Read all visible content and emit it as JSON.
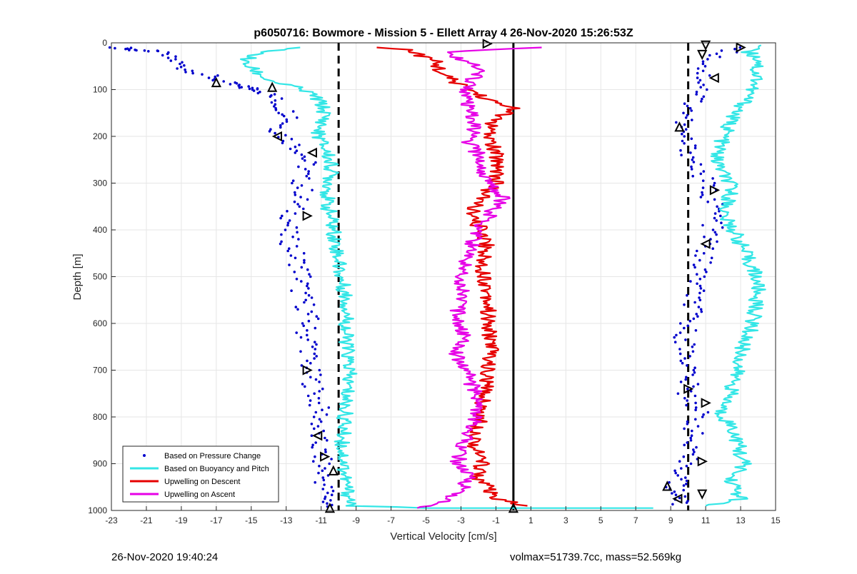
{
  "chart_data": {
    "type": "scatter",
    "title": "p6050716: Bowmore - Mission 5 - Ellett Array 4 26-Nov-2020 15:26:53Z",
    "xlabel": "Vertical Velocity [cm/s]",
    "ylabel": "Depth [m]",
    "xlim": [
      -23,
      15
    ],
    "ylim": [
      0,
      1000
    ],
    "y_reversed": true,
    "grid": true,
    "x_ticks": [
      -23,
      -21,
      -19,
      -17,
      -15,
      -13,
      -11,
      -9,
      -7,
      -5,
      -3,
      -1,
      1,
      3,
      5,
      7,
      9,
      11,
      13,
      15
    ],
    "y_ticks": [
      0,
      100,
      200,
      300,
      400,
      500,
      600,
      700,
      800,
      900,
      1000
    ],
    "reference_lines": [
      {
        "x": -10,
        "style": "dashed",
        "color": "#000000"
      },
      {
        "x": 10,
        "style": "dashed",
        "color": "#000000"
      },
      {
        "x": 0,
        "style": "solid",
        "color": "#000000"
      }
    ],
    "legend": {
      "position": "bottom-left",
      "entries": [
        {
          "label": "Based on Pressure Change",
          "color": "#0000cc",
          "marker": "dot"
        },
        {
          "label": "Based on Buoyancy and Pitch",
          "color": "#33e6e6",
          "marker": "line"
        },
        {
          "label": "Upwelling on Descent",
          "color": "#e60000",
          "marker": "line"
        },
        {
          "label": "Upwelling on Ascent",
          "color": "#e600e6",
          "marker": "line"
        }
      ]
    },
    "series": [
      {
        "name": "Based on Pressure Change (descent)",
        "color": "#0000cc",
        "points": [
          [
            -22.5,
            10
          ],
          [
            -21.8,
            15
          ],
          [
            -20.5,
            18
          ],
          [
            -19.5,
            35
          ],
          [
            -18.8,
            55
          ],
          [
            -17.5,
            70
          ],
          [
            -16.5,
            85
          ],
          [
            -15.5,
            95
          ],
          [
            -14.5,
            100
          ],
          [
            -13.8,
            115
          ],
          [
            -13.2,
            140
          ],
          [
            -12.5,
            160
          ],
          [
            -13.5,
            185
          ],
          [
            -12.8,
            210
          ],
          [
            -12.0,
            235
          ],
          [
            -11.8,
            260
          ],
          [
            -12.2,
            290
          ],
          [
            -12.0,
            320
          ],
          [
            -12.5,
            350
          ],
          [
            -12.8,
            380
          ],
          [
            -13.0,
            410
          ],
          [
            -12.6,
            440
          ],
          [
            -12.3,
            470
          ],
          [
            -12.0,
            500
          ],
          [
            -12.2,
            530
          ],
          [
            -11.9,
            560
          ],
          [
            -11.7,
            590
          ],
          [
            -11.9,
            620
          ],
          [
            -11.5,
            650
          ],
          [
            -11.8,
            680
          ],
          [
            -11.6,
            710
          ],
          [
            -11.4,
            740
          ],
          [
            -11.2,
            770
          ],
          [
            -11.0,
            800
          ],
          [
            -11.3,
            830
          ],
          [
            -11.2,
            860
          ],
          [
            -11.0,
            890
          ],
          [
            -10.9,
            920
          ],
          [
            -10.8,
            950
          ],
          [
            -10.6,
            975
          ],
          [
            -10.5,
            995
          ]
        ]
      },
      {
        "name": "Based on Pressure Change (ascent)",
        "color": "#0000cc",
        "points": [
          [
            13.0,
            10
          ],
          [
            11.5,
            30
          ],
          [
            10.8,
            60
          ],
          [
            11.0,
            90
          ],
          [
            10.5,
            120
          ],
          [
            10.0,
            150
          ],
          [
            9.5,
            180
          ],
          [
            9.8,
            210
          ],
          [
            10.2,
            240
          ],
          [
            10.5,
            270
          ],
          [
            11.0,
            300
          ],
          [
            11.3,
            330
          ],
          [
            11.6,
            360
          ],
          [
            11.4,
            390
          ],
          [
            11.2,
            420
          ],
          [
            10.9,
            450
          ],
          [
            10.7,
            480
          ],
          [
            10.5,
            510
          ],
          [
            10.3,
            540
          ],
          [
            10.2,
            570
          ],
          [
            10.0,
            600
          ],
          [
            9.8,
            630
          ],
          [
            9.9,
            660
          ],
          [
            10.1,
            690
          ],
          [
            10.0,
            720
          ],
          [
            9.9,
            750
          ],
          [
            10.6,
            780
          ],
          [
            10.5,
            810
          ],
          [
            10.2,
            840
          ],
          [
            9.8,
            870
          ],
          [
            10.0,
            900
          ],
          [
            9.6,
            930
          ],
          [
            9.2,
            950
          ],
          [
            9.6,
            970
          ],
          [
            9.4,
            990
          ]
        ]
      },
      {
        "name": "Based on Buoyancy and Pitch (descent)",
        "color": "#33e6e6",
        "points": [
          [
            -12.0,
            10
          ],
          [
            -14.5,
            20
          ],
          [
            -15.5,
            40
          ],
          [
            -14.8,
            60
          ],
          [
            -14.0,
            80
          ],
          [
            -12.5,
            95
          ],
          [
            -11.5,
            110
          ],
          [
            -11.0,
            130
          ],
          [
            -10.8,
            150
          ],
          [
            -10.9,
            170
          ],
          [
            -11.2,
            190
          ],
          [
            -11.0,
            210
          ],
          [
            -10.6,
            240
          ],
          [
            -10.4,
            270
          ],
          [
            -10.5,
            300
          ],
          [
            -10.7,
            340
          ],
          [
            -10.4,
            380
          ],
          [
            -10.2,
            420
          ],
          [
            -10.0,
            460
          ],
          [
            -9.9,
            500
          ],
          [
            -9.6,
            540
          ],
          [
            -9.5,
            580
          ],
          [
            -9.6,
            620
          ],
          [
            -9.5,
            660
          ],
          [
            -9.4,
            700
          ],
          [
            -9.5,
            740
          ],
          [
            -9.6,
            780
          ],
          [
            -9.7,
            820
          ],
          [
            -9.8,
            860
          ],
          [
            -9.7,
            900
          ],
          [
            -9.6,
            940
          ],
          [
            -9.4,
            970
          ],
          [
            -9.2,
            990
          ],
          [
            -5.0,
            995
          ],
          [
            3.0,
            995
          ],
          [
            8.0,
            995
          ]
        ]
      },
      {
        "name": "Based on Buoyancy and Pitch (ascent)",
        "color": "#33e6e6",
        "points": [
          [
            14.5,
            5
          ],
          [
            13.5,
            20
          ],
          [
            14.2,
            40
          ],
          [
            13.8,
            60
          ],
          [
            14.0,
            80
          ],
          [
            13.6,
            100
          ],
          [
            13.2,
            130
          ],
          [
            12.5,
            160
          ],
          [
            12.2,
            190
          ],
          [
            11.8,
            220
          ],
          [
            11.6,
            250
          ],
          [
            12.0,
            280
          ],
          [
            12.5,
            310
          ],
          [
            12.3,
            340
          ],
          [
            12.0,
            370
          ],
          [
            12.6,
            400
          ],
          [
            13.0,
            430
          ],
          [
            13.4,
            460
          ],
          [
            13.8,
            490
          ],
          [
            14.0,
            520
          ],
          [
            13.9,
            550
          ],
          [
            13.8,
            580
          ],
          [
            13.6,
            610
          ],
          [
            13.2,
            640
          ],
          [
            13.0,
            670
          ],
          [
            12.8,
            700
          ],
          [
            12.6,
            730
          ],
          [
            12.3,
            760
          ],
          [
            11.8,
            790
          ],
          [
            12.5,
            820
          ],
          [
            12.8,
            850
          ],
          [
            13.0,
            880
          ],
          [
            13.2,
            905
          ],
          [
            12.4,
            930
          ],
          [
            12.8,
            960
          ],
          [
            13.0,
            975
          ],
          [
            11.0,
            990
          ]
        ]
      },
      {
        "name": "Upwelling on Descent",
        "color": "#e60000",
        "points": [
          [
            -7.5,
            10
          ],
          [
            -6.0,
            15
          ],
          [
            -4.5,
            40
          ],
          [
            -4.0,
            70
          ],
          [
            -2.5,
            100
          ],
          [
            -1.0,
            130
          ],
          [
            0.2,
            140
          ],
          [
            -1.0,
            160
          ],
          [
            -1.5,
            190
          ],
          [
            -1.2,
            220
          ],
          [
            -0.8,
            260
          ],
          [
            -1.0,
            300
          ],
          [
            -1.8,
            330
          ],
          [
            -2.5,
            370
          ],
          [
            -1.8,
            400
          ],
          [
            -1.5,
            430
          ],
          [
            -1.8,
            470
          ],
          [
            -1.6,
            510
          ],
          [
            -1.4,
            550
          ],
          [
            -1.5,
            600
          ],
          [
            -1.2,
            650
          ],
          [
            -1.5,
            700
          ],
          [
            -1.6,
            740
          ],
          [
            -1.8,
            780
          ],
          [
            -2.0,
            820
          ],
          [
            -2.2,
            860
          ],
          [
            -1.8,
            900
          ],
          [
            -2.0,
            930
          ],
          [
            -1.5,
            950
          ],
          [
            -1.2,
            975
          ],
          [
            0.8,
            990
          ]
        ]
      },
      {
        "name": "Upwelling on Ascent",
        "color": "#e600e6",
        "points": [
          [
            1.8,
            10
          ],
          [
            -4.0,
            20
          ],
          [
            -2.5,
            40
          ],
          [
            -2.0,
            60
          ],
          [
            -2.5,
            90
          ],
          [
            -2.8,
            120
          ],
          [
            -2.5,
            150
          ],
          [
            -2.2,
            180
          ],
          [
            -2.6,
            210
          ],
          [
            -2.0,
            240
          ],
          [
            -1.8,
            270
          ],
          [
            -1.5,
            300
          ],
          [
            -0.5,
            330
          ],
          [
            -1.2,
            360
          ],
          [
            -1.8,
            390
          ],
          [
            -2.2,
            420
          ],
          [
            -2.6,
            450
          ],
          [
            -2.8,
            480
          ],
          [
            -3.0,
            510
          ],
          [
            -2.8,
            540
          ],
          [
            -3.2,
            570
          ],
          [
            -3.0,
            610
          ],
          [
            -2.8,
            640
          ],
          [
            -3.3,
            670
          ],
          [
            -2.6,
            700
          ],
          [
            -2.4,
            730
          ],
          [
            -2.0,
            760
          ],
          [
            -2.2,
            800
          ],
          [
            -2.6,
            840
          ],
          [
            -3.0,
            870
          ],
          [
            -3.2,
            900
          ],
          [
            -2.5,
            930
          ],
          [
            -3.0,
            960
          ],
          [
            -4.0,
            980
          ],
          [
            -5.5,
            995
          ]
        ]
      }
    ],
    "markers": [
      {
        "x": -1.5,
        "y": 2,
        "shape": "triangle-right",
        "color": "#000000"
      },
      {
        "x": 11.0,
        "y": 5,
        "shape": "triangle-down",
        "color": "#000000"
      },
      {
        "x": 13.0,
        "y": 10,
        "shape": "triangle-right",
        "color": "#000000"
      },
      {
        "x": -17.0,
        "y": 85,
        "shape": "triangle-up",
        "color": "#000000"
      },
      {
        "x": -13.8,
        "y": 95,
        "shape": "triangle-up",
        "color": "#000000"
      },
      {
        "x": -13.5,
        "y": 200,
        "shape": "triangle-left",
        "color": "#000000"
      },
      {
        "x": -11.5,
        "y": 235,
        "shape": "triangle-left",
        "color": "#000000"
      },
      {
        "x": -11.8,
        "y": 370,
        "shape": "triangle-right",
        "color": "#000000"
      },
      {
        "x": -11.8,
        "y": 700,
        "shape": "triangle-right",
        "color": "#000000"
      },
      {
        "x": -11.2,
        "y": 840,
        "shape": "triangle-left",
        "color": "#000000"
      },
      {
        "x": -10.8,
        "y": 885,
        "shape": "triangle-right",
        "color": "#000000"
      },
      {
        "x": -10.3,
        "y": 915,
        "shape": "triangle-up",
        "color": "#000000"
      },
      {
        "x": -10.5,
        "y": 995,
        "shape": "triangle-up",
        "color": "#000000"
      },
      {
        "x": 0.0,
        "y": 995,
        "shape": "triangle-up",
        "color": "#000000"
      },
      {
        "x": 10.8,
        "y": 25,
        "shape": "triangle-down",
        "color": "#000000"
      },
      {
        "x": 11.5,
        "y": 75,
        "shape": "triangle-left",
        "color": "#000000"
      },
      {
        "x": 9.5,
        "y": 180,
        "shape": "triangle-up",
        "color": "#000000"
      },
      {
        "x": 11.5,
        "y": 315,
        "shape": "triangle-right",
        "color": "#000000"
      },
      {
        "x": 11.0,
        "y": 430,
        "shape": "triangle-left",
        "color": "#000000"
      },
      {
        "x": 10.0,
        "y": 740,
        "shape": "triangle-right",
        "color": "#000000"
      },
      {
        "x": 11.0,
        "y": 770,
        "shape": "triangle-right",
        "color": "#000000"
      },
      {
        "x": 10.8,
        "y": 895,
        "shape": "triangle-right",
        "color": "#000000"
      },
      {
        "x": 10.8,
        "y": 965,
        "shape": "triangle-down",
        "color": "#000000"
      },
      {
        "x": 9.4,
        "y": 975,
        "shape": "triangle-left",
        "color": "#000000"
      },
      {
        "x": 8.8,
        "y": 948,
        "shape": "triangle-up",
        "color": "#000000"
      }
    ]
  },
  "footer": {
    "left": "26-Nov-2020 19:40:24",
    "right": "volmax=51739.7cc, mass=52.569kg"
  }
}
